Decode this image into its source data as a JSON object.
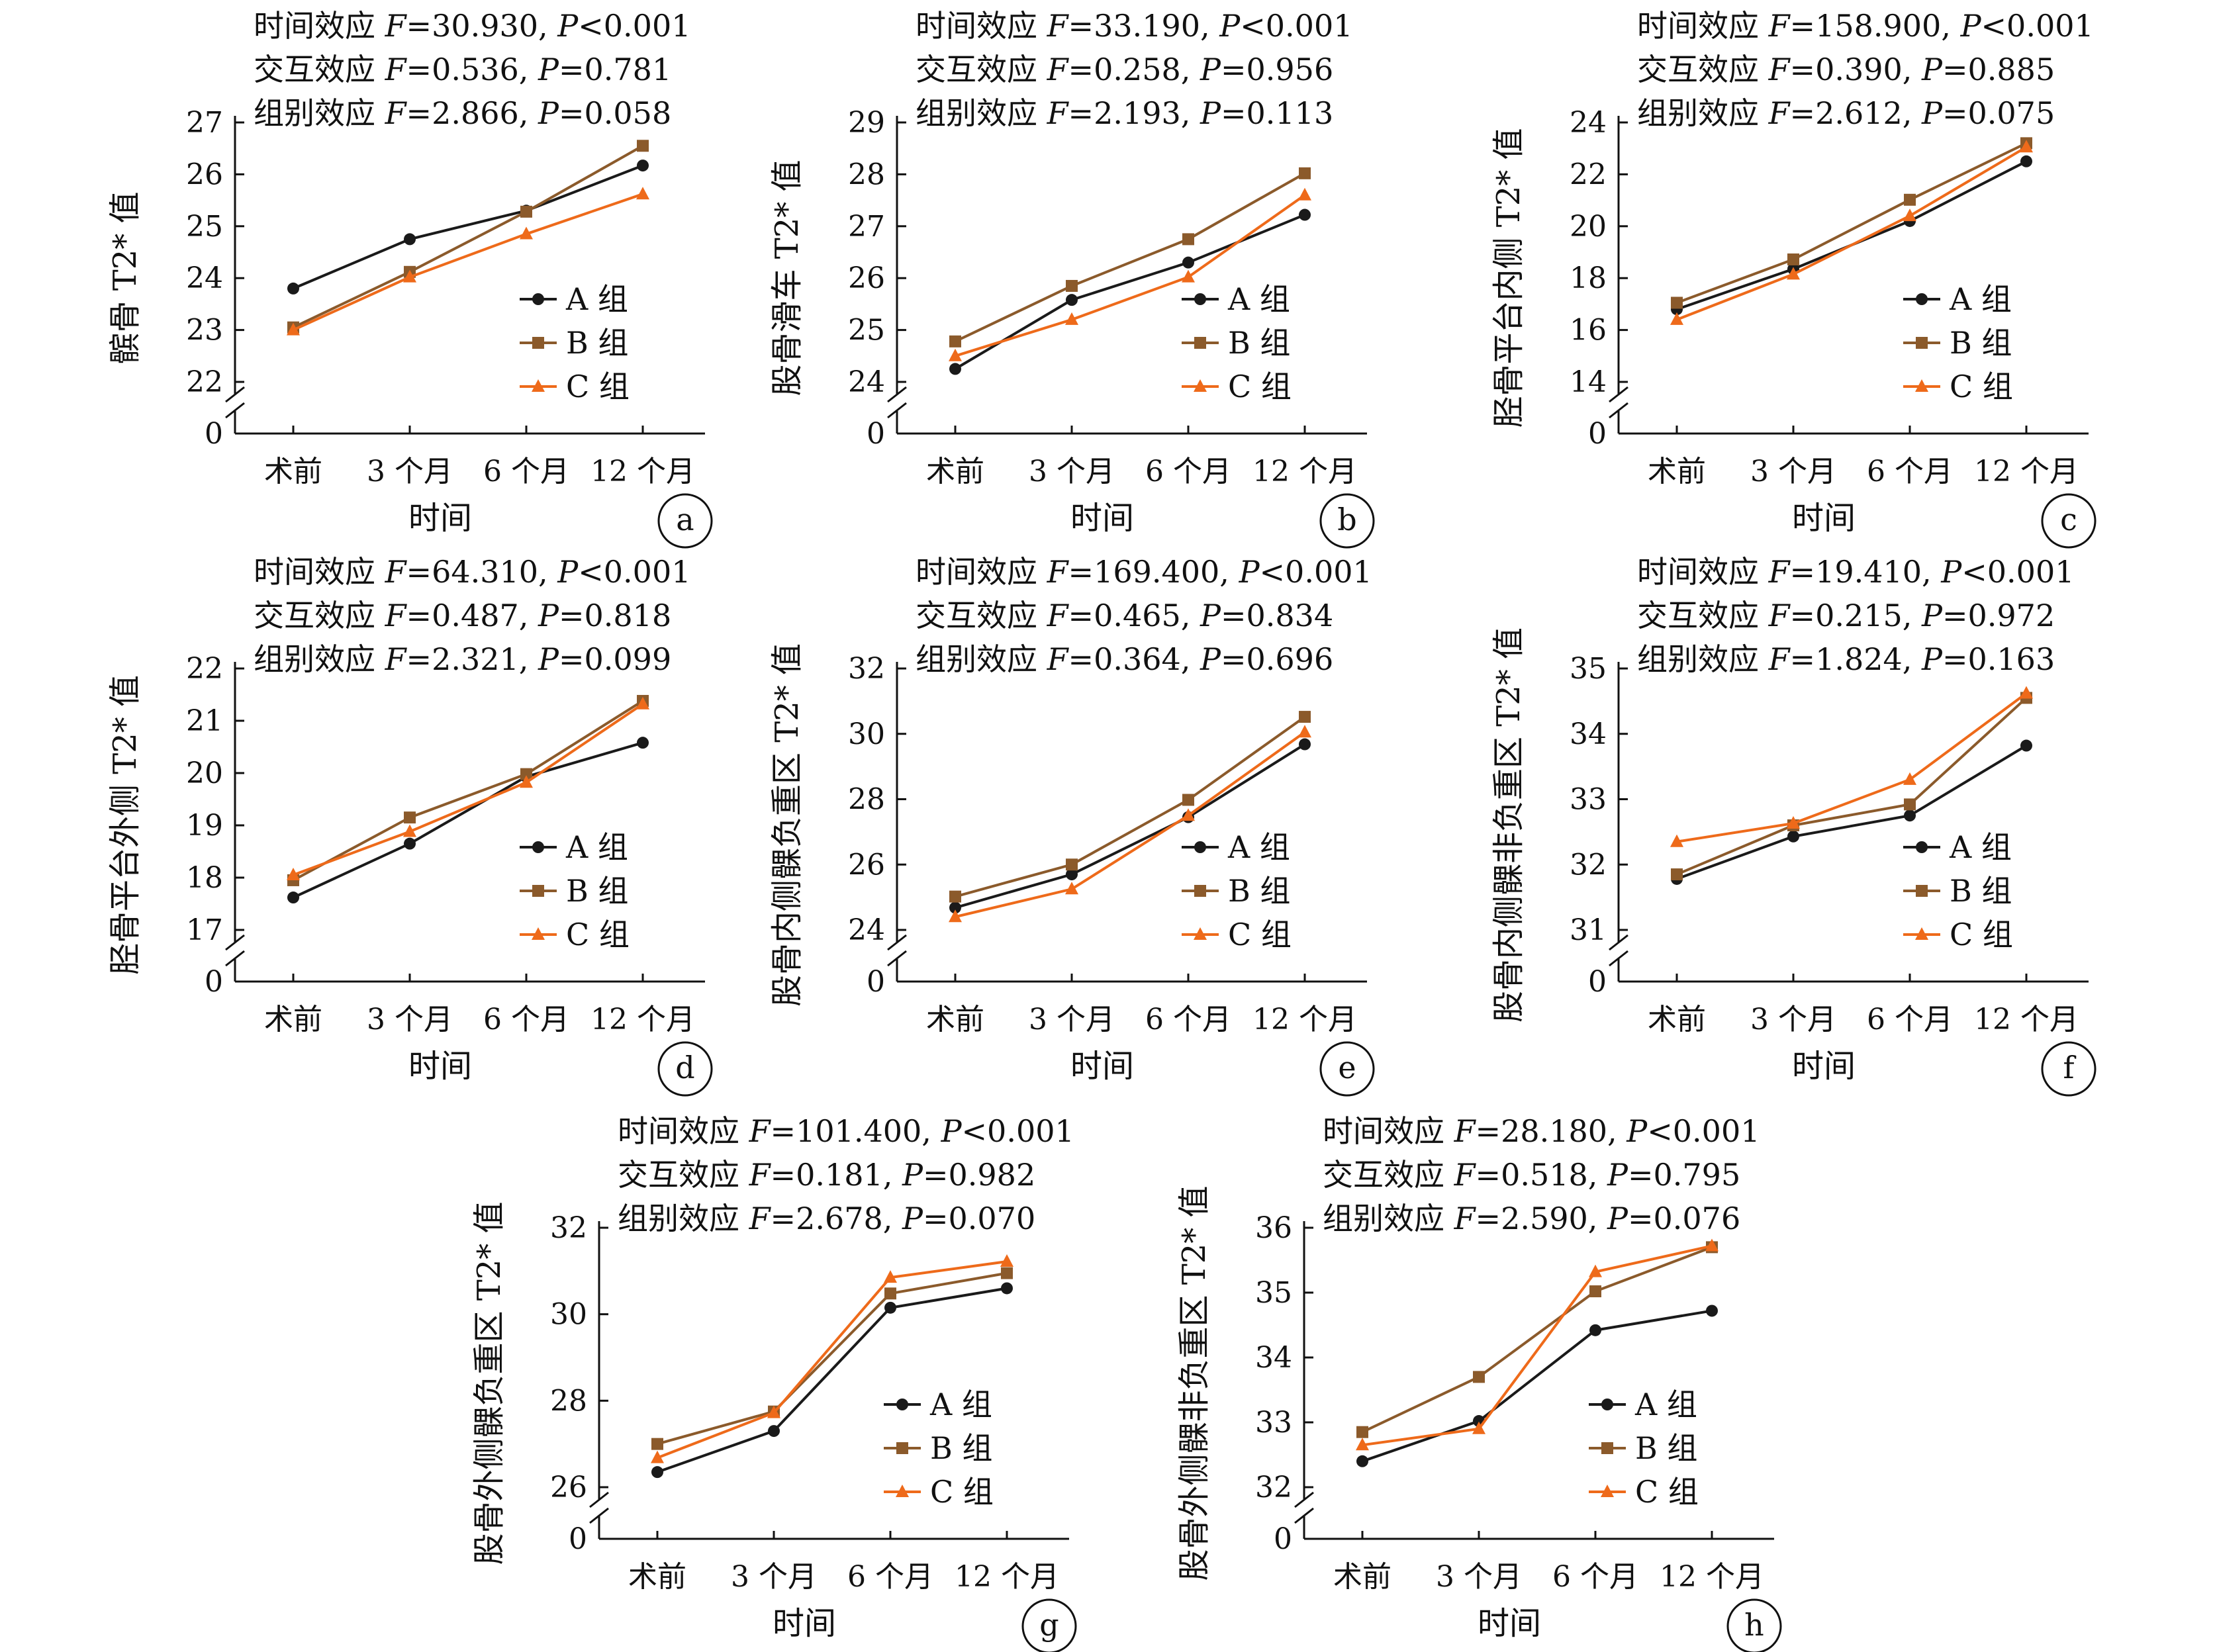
{
  "figure": {
    "x_title": "时间",
    "legend_labels": [
      "A 组",
      "B 组",
      "C 组"
    ],
    "series_colors": {
      "A 组": "#1a1a1a",
      "B 组": "#8b5a2b",
      "C 组": "#ee6a1a"
    },
    "stat_prefixes": {
      "time": "时间效应",
      "interaction": "交互效应",
      "group": "组别效应"
    }
  },
  "chart_data": [
    {
      "type": "line",
      "panel": "a",
      "ylabel": "髌骨 T2* 值",
      "stats": [
        [
          "F=30.930",
          "P<0.001"
        ],
        [
          "F=0.536",
          "P=0.781"
        ],
        [
          "F=2.866",
          "P=0.058"
        ]
      ],
      "x": [
        "术前",
        "3 个月",
        "6 个月",
        "12 个月"
      ],
      "ylim": [
        22,
        27
      ],
      "yticks": [
        22,
        23,
        24,
        25,
        26,
        27
      ],
      "axis_break": true,
      "series": [
        {
          "name": "A 组",
          "values": [
            23.8,
            24.75,
            25.3,
            26.17
          ]
        },
        {
          "name": "B 组",
          "values": [
            23.05,
            24.12,
            25.28,
            26.55
          ]
        },
        {
          "name": "C 组",
          "values": [
            23.0,
            24.02,
            24.85,
            25.62
          ]
        }
      ]
    },
    {
      "type": "line",
      "panel": "b",
      "ylabel": "股骨滑车 T2* 值",
      "stats": [
        [
          "F=33.190",
          "P<0.001"
        ],
        [
          "F=0.258",
          "P=0.956"
        ],
        [
          "F=2.193",
          "P=0.113"
        ]
      ],
      "x": [
        "术前",
        "3 个月",
        "6 个月",
        "12 个月"
      ],
      "ylim": [
        24,
        29
      ],
      "yticks": [
        24,
        25,
        26,
        27,
        28,
        29
      ],
      "axis_break": true,
      "series": [
        {
          "name": "A 组",
          "values": [
            24.25,
            25.58,
            26.3,
            27.22
          ]
        },
        {
          "name": "B 组",
          "values": [
            24.78,
            25.85,
            26.75,
            28.02
          ]
        },
        {
          "name": "C 组",
          "values": [
            24.5,
            25.2,
            26.02,
            27.6
          ]
        }
      ]
    },
    {
      "type": "line",
      "panel": "c",
      "ylabel": "胫骨平台内侧 T2* 值",
      "stats": [
        [
          "F=158.900",
          "P<0.001"
        ],
        [
          "F=0.390",
          "P=0.885"
        ],
        [
          "F=2.612",
          "P=0.075"
        ]
      ],
      "x": [
        "术前",
        "3 个月",
        "6 个月",
        "12 个月"
      ],
      "ylim": [
        14,
        24
      ],
      "yticks": [
        14,
        16,
        18,
        20,
        22,
        24
      ],
      "axis_break": true,
      "series": [
        {
          "name": "A 组",
          "values": [
            16.8,
            18.35,
            20.2,
            22.5
          ]
        },
        {
          "name": "B 组",
          "values": [
            17.05,
            18.72,
            21.02,
            23.2
          ]
        },
        {
          "name": "C 组",
          "values": [
            16.4,
            18.15,
            20.4,
            23.05
          ]
        }
      ]
    },
    {
      "type": "line",
      "panel": "d",
      "ylabel": "胫骨平台外侧 T2* 值",
      "stats": [
        [
          "F=64.310",
          "P<0.001"
        ],
        [
          "F=0.487",
          "P=0.818"
        ],
        [
          "F=2.321",
          "P=0.099"
        ]
      ],
      "x": [
        "术前",
        "3 个月",
        "6 个月",
        "12 个月"
      ],
      "ylim": [
        17,
        22
      ],
      "yticks": [
        17,
        18,
        19,
        20,
        21,
        22
      ],
      "axis_break": true,
      "series": [
        {
          "name": "A 组",
          "values": [
            17.62,
            18.65,
            19.93,
            20.58
          ]
        },
        {
          "name": "B 组",
          "values": [
            17.95,
            19.15,
            19.98,
            21.38
          ]
        },
        {
          "name": "C 组",
          "values": [
            18.05,
            18.88,
            19.82,
            21.32
          ]
        }
      ]
    },
    {
      "type": "line",
      "panel": "e",
      "ylabel": "股骨内侧髁负重区 T2* 值",
      "stats": [
        [
          "F=169.400",
          "P<0.001"
        ],
        [
          "F=0.465",
          "P=0.834"
        ],
        [
          "F=0.364",
          "P=0.696"
        ]
      ],
      "x": [
        "术前",
        "3 个月",
        "6 个月",
        "12 个月"
      ],
      "ylim": [
        24,
        32
      ],
      "yticks": [
        24,
        26,
        28,
        30,
        32
      ],
      "axis_break": true,
      "series": [
        {
          "name": "A 组",
          "values": [
            24.68,
            25.7,
            27.45,
            29.68
          ]
        },
        {
          "name": "B 组",
          "values": [
            25.02,
            26.0,
            27.98,
            30.52
          ]
        },
        {
          "name": "C 组",
          "values": [
            24.4,
            25.25,
            27.5,
            30.05
          ]
        }
      ]
    },
    {
      "type": "line",
      "panel": "f",
      "ylabel": "股骨内侧髁非负重区 T2* 值",
      "stats": [
        [
          "F=19.410",
          "P<0.001"
        ],
        [
          "F=0.215",
          "P=0.972"
        ],
        [
          "F=1.824",
          "P=0.163"
        ]
      ],
      "x": [
        "术前",
        "3 个月",
        "6 个月",
        "12 个月"
      ],
      "ylim": [
        31,
        35
      ],
      "yticks": [
        31,
        32,
        33,
        34,
        35
      ],
      "axis_break": true,
      "series": [
        {
          "name": "A 组",
          "values": [
            31.78,
            32.43,
            32.75,
            33.82
          ]
        },
        {
          "name": "B 组",
          "values": [
            31.85,
            32.6,
            32.92,
            34.55
          ]
        },
        {
          "name": "C 组",
          "values": [
            32.35,
            32.63,
            33.3,
            34.62
          ]
        }
      ]
    },
    {
      "type": "line",
      "panel": "g",
      "ylabel": "股骨外侧髁负重区 T2* 值",
      "stats": [
        [
          "F=101.400",
          "P<0.001"
        ],
        [
          "F=0.181",
          "P=0.982"
        ],
        [
          "F=2.678",
          "P=0.070"
        ]
      ],
      "x": [
        "术前",
        "3 个月",
        "6 个月",
        "12 个月"
      ],
      "ylim": [
        26,
        32
      ],
      "yticks": [
        26,
        28,
        30,
        32
      ],
      "axis_break": true,
      "series": [
        {
          "name": "A 组",
          "values": [
            26.35,
            27.3,
            30.15,
            30.6
          ]
        },
        {
          "name": "B 组",
          "values": [
            27.0,
            27.75,
            30.48,
            30.95
          ]
        },
        {
          "name": "C 组",
          "values": [
            26.68,
            27.72,
            30.85,
            31.22
          ]
        }
      ]
    },
    {
      "type": "line",
      "panel": "h",
      "ylabel": "股骨外侧髁非负重区 T2* 值",
      "stats": [
        [
          "F=28.180",
          "P<0.001"
        ],
        [
          "F=0.518",
          "P=0.795"
        ],
        [
          "F=2.590",
          "P=0.076"
        ]
      ],
      "x": [
        "术前",
        "3 个月",
        "6 个月",
        "12 个月"
      ],
      "ylim": [
        32,
        36
      ],
      "yticks": [
        32,
        33,
        34,
        35,
        36
      ],
      "axis_break": true,
      "series": [
        {
          "name": "A 组",
          "values": [
            32.4,
            33.02,
            34.42,
            34.72
          ]
        },
        {
          "name": "B 组",
          "values": [
            32.85,
            33.7,
            35.02,
            35.7
          ]
        },
        {
          "name": "C 组",
          "values": [
            32.65,
            32.9,
            35.32,
            35.72
          ]
        }
      ]
    }
  ]
}
